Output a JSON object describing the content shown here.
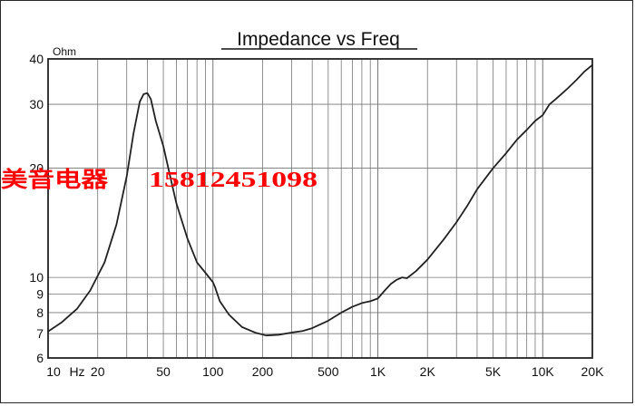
{
  "chart_data": {
    "type": "line",
    "title": "Impedance vs Freq",
    "xlabel": "",
    "ylabel": "Ohm",
    "x_scale": "log",
    "y_scale": "log",
    "xlim": [
      10,
      20000
    ],
    "ylim": [
      6,
      40
    ],
    "grid": true,
    "x_tick_labels": [
      {
        "value": 10,
        "label": "10"
      },
      {
        "value": 15,
        "label": "Hz"
      },
      {
        "value": 20,
        "label": "20"
      },
      {
        "value": 50,
        "label": "50"
      },
      {
        "value": 100,
        "label": "100"
      },
      {
        "value": 200,
        "label": "200"
      },
      {
        "value": 500,
        "label": "500"
      },
      {
        "value": 1000,
        "label": "1K"
      },
      {
        "value": 2000,
        "label": "2K"
      },
      {
        "value": 5000,
        "label": "5K"
      },
      {
        "value": 10000,
        "label": "10K"
      },
      {
        "value": 20000,
        "label": "20K"
      }
    ],
    "y_tick_labels": [
      {
        "value": 40,
        "label": "40"
      },
      {
        "value": 30,
        "label": "30"
      },
      {
        "value": 20,
        "label": "20"
      },
      {
        "value": 10,
        "label": "10"
      },
      {
        "value": 9,
        "label": "9"
      },
      {
        "value": 8,
        "label": "8"
      },
      {
        "value": 7,
        "label": "7"
      },
      {
        "value": 6,
        "label": "6"
      }
    ],
    "series": [
      {
        "color": "#222222",
        "x": [
          10,
          12,
          15,
          18,
          22,
          26,
          30,
          33,
          36,
          38,
          40,
          42,
          45,
          50,
          55,
          60,
          70,
          80,
          90,
          100,
          103,
          110,
          125,
          150,
          180,
          210,
          250,
          300,
          350,
          400,
          500,
          600,
          700,
          800,
          900,
          1000,
          1100,
          1200,
          1300,
          1400,
          1500,
          1700,
          2000,
          2500,
          3000,
          3500,
          4000,
          5000,
          6000,
          7000,
          8000,
          9000,
          10000,
          11000,
          12000,
          14000,
          16000,
          18000,
          20000
        ],
        "values": [
          7.1,
          7.5,
          8.2,
          9.2,
          11.0,
          14.0,
          19.0,
          25.0,
          30.5,
          32.0,
          32.2,
          31.0,
          27.0,
          23.0,
          19.0,
          16.0,
          12.8,
          11.0,
          10.3,
          9.7,
          9.4,
          8.6,
          7.9,
          7.3,
          7.05,
          6.92,
          6.95,
          7.05,
          7.12,
          7.25,
          7.6,
          8.0,
          8.3,
          8.5,
          8.6,
          8.75,
          9.2,
          9.6,
          9.85,
          10.0,
          9.95,
          10.4,
          11.2,
          12.7,
          14.2,
          15.8,
          17.5,
          20.0,
          22.0,
          24.0,
          25.5,
          27.0,
          28.0,
          30.0,
          31.0,
          33.0,
          35.0,
          37.0,
          38.5
        ]
      }
    ]
  },
  "overlay": {
    "brand_text": "美音电器",
    "phone_text": "15812451098"
  }
}
